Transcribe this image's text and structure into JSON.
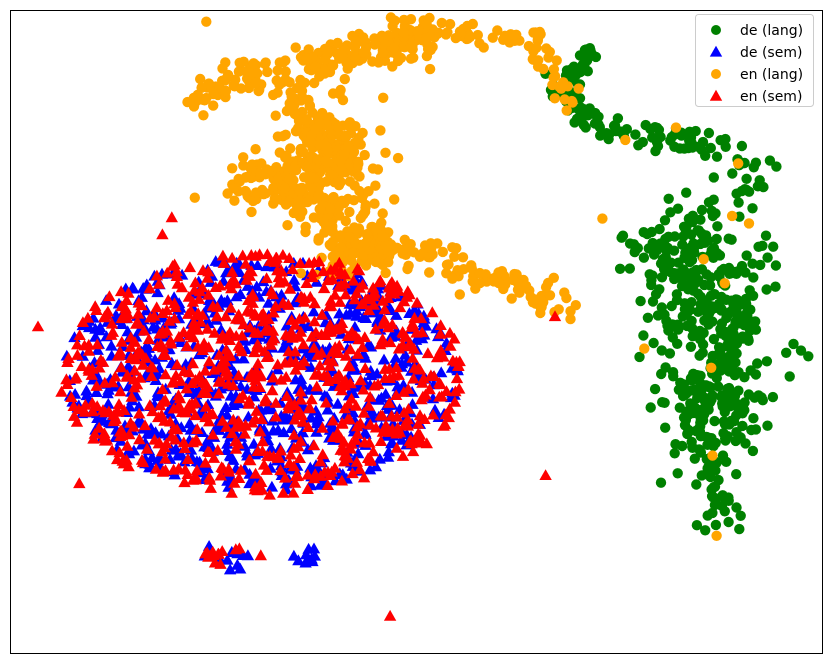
{
  "chart_data": {
    "type": "scatter",
    "title": "",
    "xlabel": "",
    "ylabel": "",
    "xlim": [
      -60,
      60
    ],
    "ylim": [
      -60,
      60
    ],
    "axes_ticks": false,
    "grid": false,
    "legend_position": "top-right",
    "series": [
      {
        "name": "de (lang)",
        "marker": "circle",
        "color": "#008000",
        "description": "arm along the top right and a dense vertical column on the right",
        "generators": [
          {
            "kind": "path",
            "count": 110,
            "spread": 1.4,
            "path": [
              [
                20.5,
                47.3
              ],
              [
                24.5,
                40.5
              ],
              [
                29.2,
                37.2
              ],
              [
                34.8,
                37.9
              ],
              [
                40.9,
                34.8
              ],
              [
                44.9,
                35.1
              ],
              [
                49.8,
                30.7
              ],
              [
                48.9,
                24.2
              ]
            ]
          },
          {
            "kind": "path",
            "count": 40,
            "spread": 1.0,
            "path": [
              [
                25.3,
                53.5
              ],
              [
                24.8,
                50.5
              ],
              [
                22.9,
                45.9
              ],
              [
                21.6,
                41.7
              ]
            ]
          },
          {
            "kind": "blob",
            "count": 120,
            "cx": 40.1,
            "cy": 15.2,
            "sx": 5.4,
            "sy": 5.0
          },
          {
            "kind": "blob",
            "count": 180,
            "cx": 44.4,
            "cy": 2.0,
            "sx": 4.6,
            "sy": 7.0
          },
          {
            "kind": "blob",
            "count": 160,
            "cx": 43.6,
            "cy": -15.7,
            "sx": 3.8,
            "sy": 6.0
          },
          {
            "kind": "path",
            "count": 30,
            "spread": 1.2,
            "path": [
              [
                43.1,
                -24.9
              ],
              [
                45.3,
                -33.1
              ],
              [
                44.4,
                -38.1
              ]
            ]
          }
        ]
      },
      {
        "name": "de (sem)",
        "marker": "triangle",
        "color": "#0000ff",
        "description": "broad cloud in the lower left, mostly hidden beneath en (sem)",
        "generators": [
          {
            "kind": "ellipse",
            "count": 780,
            "cx": -23.2,
            "cy": -7.9,
            "rx": 29.5,
            "ry": 21.8
          },
          {
            "kind": "blob",
            "count": 12,
            "cx": -27.2,
            "cy": -42.3,
            "sx": 2.5,
            "sy": 1.2
          },
          {
            "kind": "blob",
            "count": 10,
            "cx": -16.8,
            "cy": -42.0,
            "sx": 1.5,
            "sy": 1.0
          },
          {
            "kind": "blob",
            "count": 8,
            "cx": -13.7,
            "cy": -5.0,
            "sx": 1.5,
            "sy": 1.5
          }
        ]
      },
      {
        "name": "en (lang)",
        "marker": "circle",
        "color": "#ffa500",
        "description": "snake-shaped band across the top middle",
        "generators": [
          {
            "kind": "path",
            "count": 520,
            "spread": 1.6,
            "path": [
              [
                -32.5,
                43.0
              ],
              [
                -28.1,
                47.1
              ],
              [
                -21.7,
                49.4
              ],
              [
                -14.2,
                50.9
              ],
              [
                -9.3,
                53.0
              ],
              [
                -3.5,
                54.0
              ],
              [
                1.6,
                56.3
              ],
              [
                1.1,
                52.2
              ],
              [
                -5.8,
                51.6
              ],
              [
                -13.0,
                50.4
              ],
              [
                -18.7,
                45.8
              ],
              [
                -17.0,
                38.2
              ],
              [
                -11.7,
                36.9
              ],
              [
                -10.2,
                31.4
              ],
              [
                -14.7,
                28.2
              ],
              [
                -20.5,
                30.3
              ],
              [
                -25.3,
                31.0
              ],
              [
                -25.8,
                25.8
              ],
              [
                -17.9,
                24.1
              ],
              [
                -12.3,
                22.3
              ],
              [
                -11.0,
                18.6
              ],
              [
                -7.8,
                13.8
              ],
              [
                -3.8,
                15.1
              ],
              [
                1.2,
                15.6
              ],
              [
                5.2,
                11.6
              ],
              [
                10.4,
                9.9
              ],
              [
                15.3,
                8.4
              ],
              [
                18.1,
                7.5
              ],
              [
                21.2,
                2.9
              ]
            ]
          },
          {
            "kind": "blob",
            "count": 170,
            "cx": -13.1,
            "cy": 31.4,
            "sx": 3.6,
            "sy": 5.7
          },
          {
            "kind": "blob",
            "count": 90,
            "cx": -9.0,
            "cy": 16.3,
            "sx": 3.2,
            "sy": 3.2
          },
          {
            "kind": "path",
            "count": 80,
            "spread": 1.2,
            "path": [
              [
                -3.0,
                56.7
              ],
              [
                5.7,
                56.1
              ],
              [
                12.9,
                55.4
              ],
              [
                17.6,
                54.4
              ],
              [
                19.8,
                50.3
              ],
              [
                21.5,
                45.3
              ],
              [
                21.3,
                40.4
              ]
            ]
          },
          {
            "kind": "points",
            "coords": [
              [
                -31.1,
                58.0
              ],
              [
                -32.8,
                25.1
              ],
              [
                27.5,
                21.2
              ],
              [
                30.9,
                35.9
              ],
              [
                38.4,
                38.2
              ],
              [
                49.2,
                20.3
              ],
              [
                42.5,
                13.6
              ],
              [
                45.6,
                9.1
              ],
              [
                43.6,
                -6.7
              ],
              [
                33.7,
                -3.1
              ],
              [
                43.8,
                -23.1
              ],
              [
                44.4,
                -38.1
              ],
              [
                46.7,
                21.7
              ],
              [
                47.6,
                31.5
              ]
            ]
          }
        ]
      },
      {
        "name": "en (sem)",
        "marker": "triangle",
        "color": "#ff0000",
        "description": "broad cloud in the lower left, drawn on top of de (sem)",
        "generators": [
          {
            "kind": "ellipse",
            "count": 820,
            "cx": -23.2,
            "cy": -7.9,
            "rx": 30.2,
            "ry": 22.6
          },
          {
            "kind": "blob",
            "count": 14,
            "cx": -28.3,
            "cy": -42.0,
            "sx": 2.2,
            "sy": 1.3
          },
          {
            "kind": "points",
            "coords": [
              [
                -3.9,
                -53.1
              ],
              [
                -56.0,
                1.0
              ],
              [
                -51.8,
                -8.9
              ],
              [
                -49.9,
                -28.3
              ],
              [
                19.1,
                -26.8
              ],
              [
                20.5,
                2.9
              ],
              [
                -36.2,
                21.4
              ],
              [
                -37.6,
                18.2
              ]
            ]
          }
        ]
      }
    ]
  }
}
